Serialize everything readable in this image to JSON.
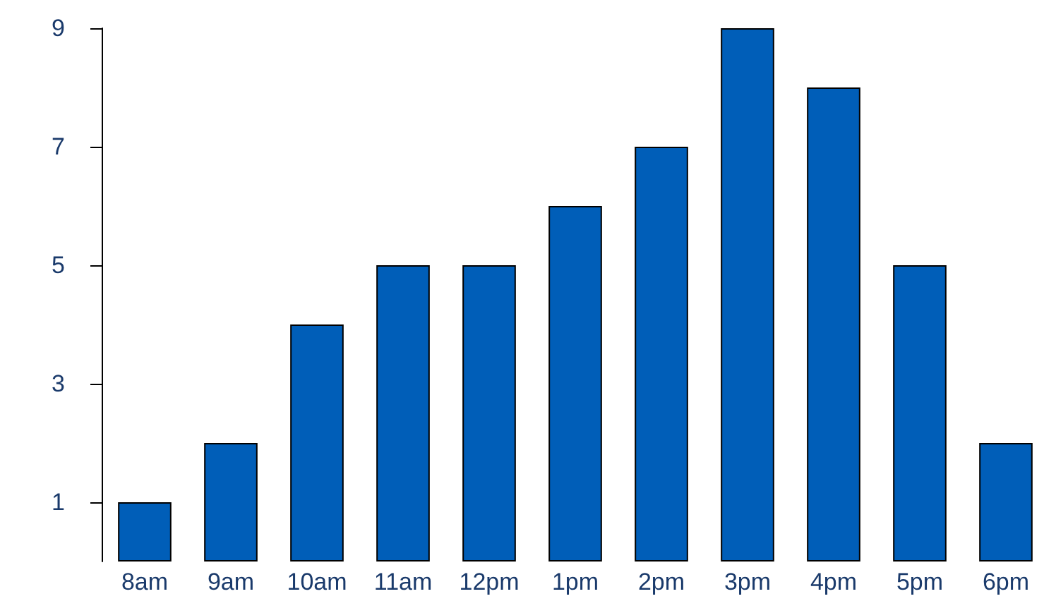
{
  "chart_data": {
    "type": "bar",
    "categories": [
      "8am",
      "9am",
      "10am",
      "11am",
      "12pm",
      "1pm",
      "2pm",
      "3pm",
      "4pm",
      "5pm",
      "6pm"
    ],
    "values": [
      1,
      2,
      4,
      5,
      5,
      6,
      7,
      9,
      8,
      5,
      2
    ],
    "color": "#005eb8",
    "ylim": [
      0,
      9
    ],
    "yticks": [
      1,
      3,
      5,
      7,
      9
    ],
    "grid": false
  }
}
